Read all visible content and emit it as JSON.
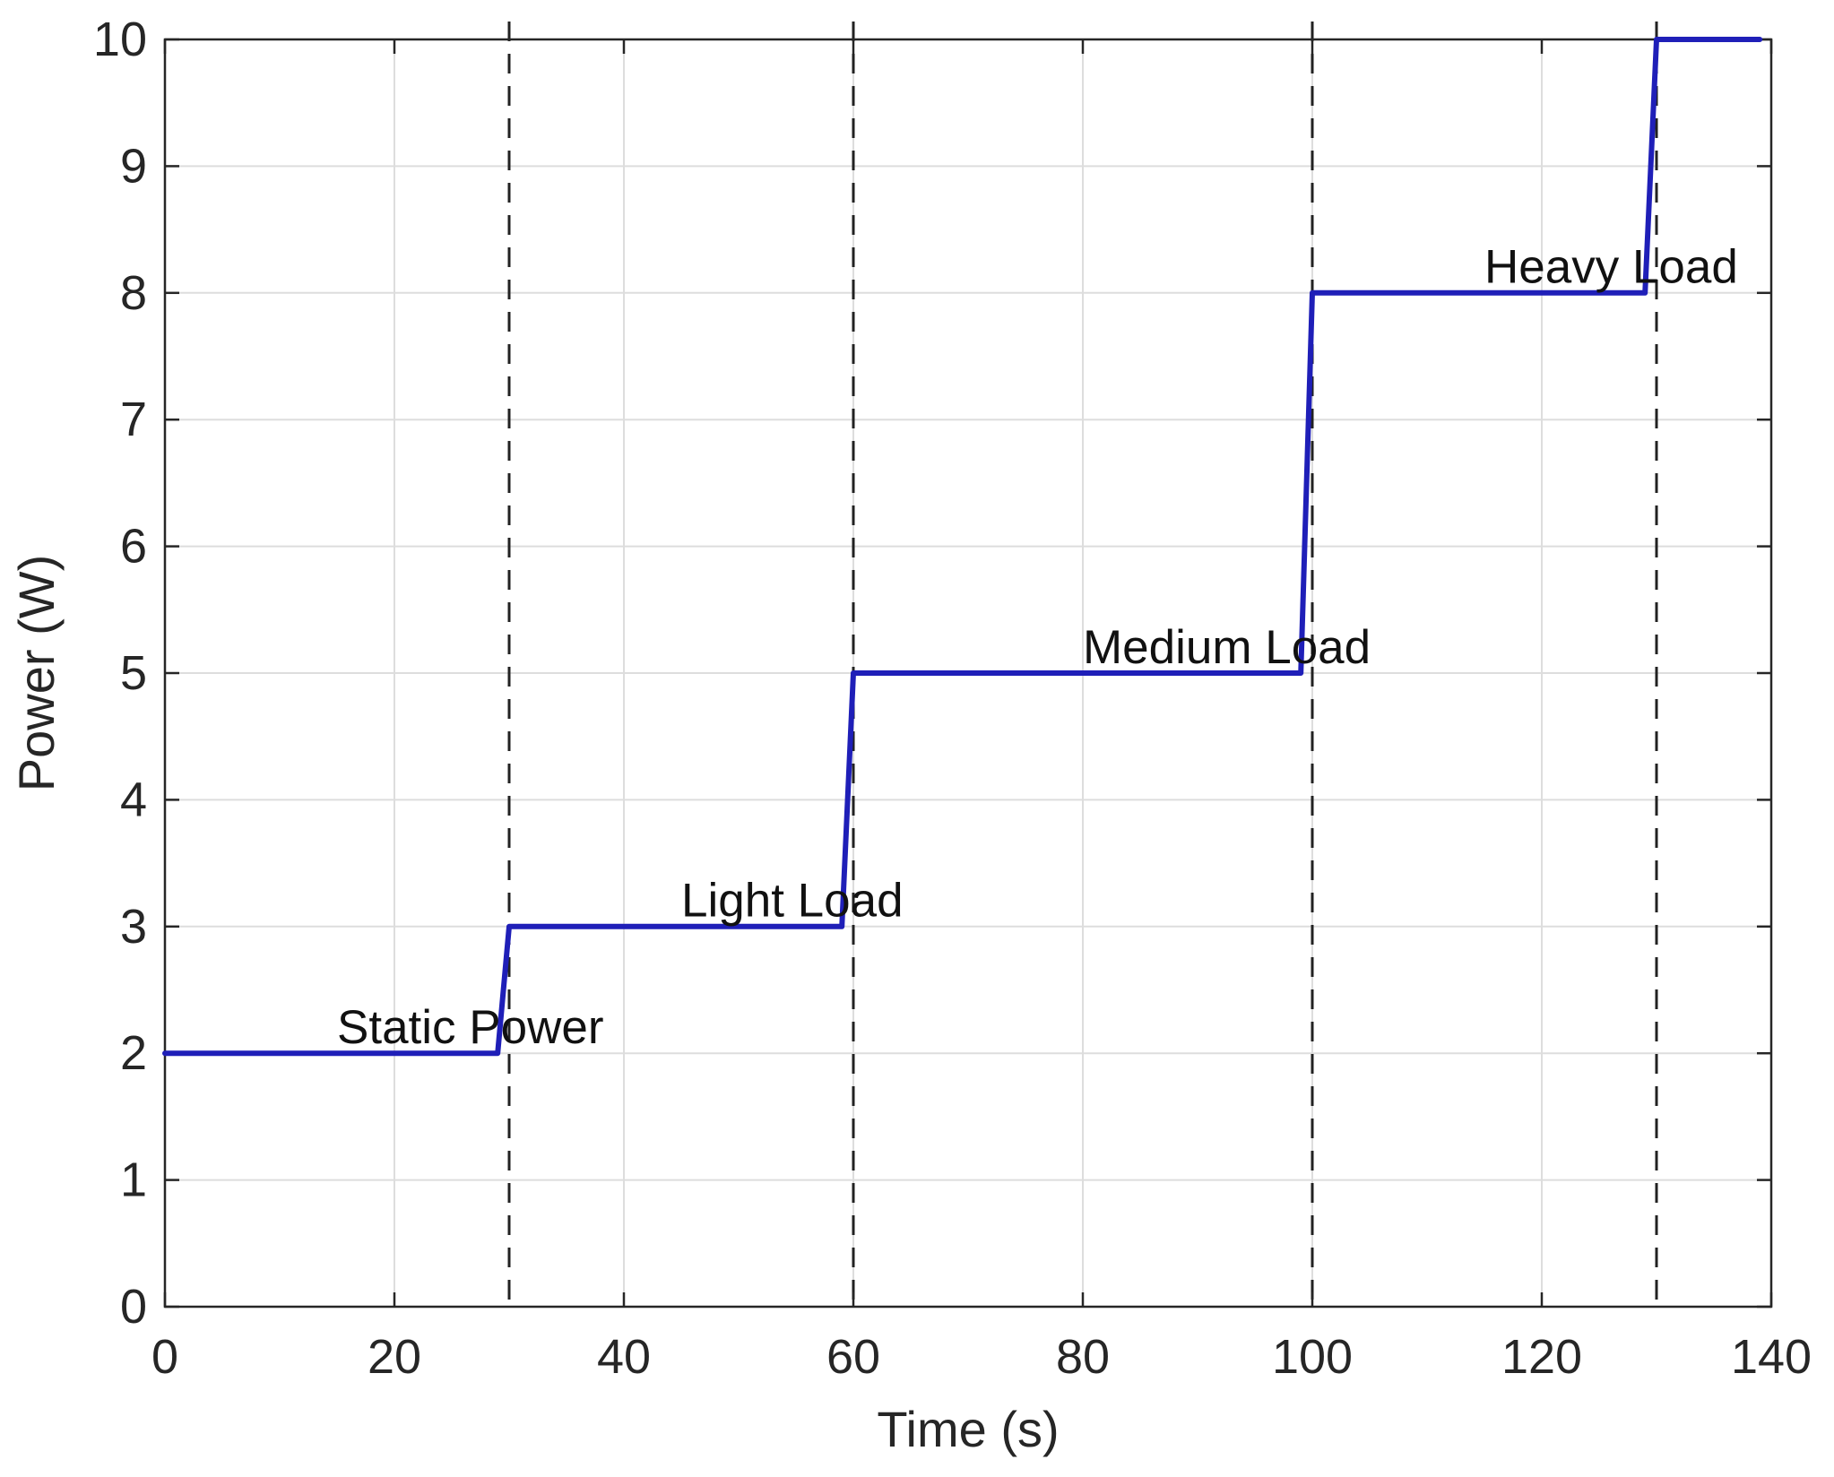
{
  "chart_data": {
    "type": "line",
    "title": "",
    "xlabel": "Time (s)",
    "ylabel": "Power (W)",
    "xlim": [
      0,
      140
    ],
    "ylim": [
      0,
      10
    ],
    "xticks": [
      0,
      20,
      40,
      60,
      80,
      100,
      120,
      140
    ],
    "yticks": [
      0,
      1,
      2,
      3,
      4,
      5,
      6,
      7,
      8,
      9,
      10
    ],
    "grid": true,
    "series": [
      {
        "color": "#1f1fb8",
        "x": [
          0,
          29,
          30,
          59,
          60,
          99,
          100,
          129,
          130,
          139
        ],
        "y": [
          2,
          2,
          3,
          3,
          5,
          5,
          8,
          8,
          10,
          10
        ]
      }
    ],
    "vlines": [
      {
        "x": 30,
        "style": "dashed",
        "color": "#222222"
      },
      {
        "x": 60,
        "style": "dashed",
        "color": "#222222"
      },
      {
        "x": 100,
        "style": "dashed",
        "color": "#222222"
      },
      {
        "x": 130,
        "style": "dashed",
        "color": "#222222"
      }
    ],
    "annotations": [
      {
        "text": "Static Power",
        "x": 15,
        "y": 2.05
      },
      {
        "text": "Light Load",
        "x": 45,
        "y": 3.05
      },
      {
        "text": "Medium Load",
        "x": 80,
        "y": 5.05
      },
      {
        "text": "Heavy Load",
        "x": 115,
        "y": 8.05
      }
    ]
  }
}
